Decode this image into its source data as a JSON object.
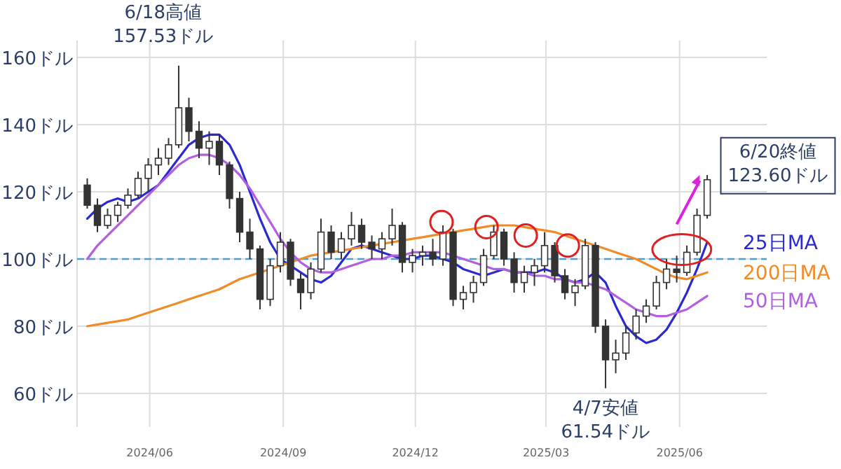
{
  "chart_data": {
    "type": "candlestick",
    "color": "#333333",
    "x": [
      "2024-04-19",
      "2024-04-26",
      "2024-05-03",
      "2024-05-10",
      "2024-05-17",
      "2024-05-24",
      "2024-05-31",
      "2024-06-07",
      "2024-06-14",
      "2024-06-21",
      "2024-06-28",
      "2024-07-05",
      "2024-07-12",
      "2024-07-19",
      "2024-07-26",
      "2024-08-02",
      "2024-08-09",
      "2024-08-16",
      "2024-08-23",
      "2024-08-30",
      "2024-09-06",
      "2024-09-13",
      "2024-09-20",
      "2024-09-27",
      "2024-10-04",
      "2024-10-11",
      "2024-10-18",
      "2024-10-25",
      "2024-11-01",
      "2024-11-08",
      "2024-11-15",
      "2024-11-22",
      "2024-11-29",
      "2024-12-06",
      "2024-12-13",
      "2024-12-20",
      "2024-12-27",
      "2025-01-03",
      "2025-01-10",
      "2025-01-17",
      "2025-01-24",
      "2025-01-31",
      "2025-02-07",
      "2025-02-14",
      "2025-02-21",
      "2025-02-28",
      "2025-03-07",
      "2025-03-14",
      "2025-03-21",
      "2025-03-28",
      "2025-04-04",
      "2025-04-11",
      "2025-04-18",
      "2025-04-25",
      "2025-05-02",
      "2025-05-09",
      "2025-05-16",
      "2025-05-23",
      "2025-05-30",
      "2025-06-06",
      "2025-06-13",
      "2025-06-20"
    ],
    "ohlc": [
      [
        122,
        124,
        115,
        116
      ],
      [
        116,
        118,
        108,
        110
      ],
      [
        110,
        115,
        109,
        113
      ],
      [
        113,
        117,
        111,
        116
      ],
      [
        116,
        121,
        115,
        119
      ],
      [
        119,
        126,
        118,
        124
      ],
      [
        124,
        130,
        120,
        128
      ],
      [
        128,
        133,
        125,
        130
      ],
      [
        130,
        136,
        128,
        134
      ],
      [
        134,
        157.53,
        133,
        145
      ],
      [
        145,
        148,
        135,
        138
      ],
      [
        138,
        141,
        130,
        133
      ],
      [
        133,
        138,
        128,
        135
      ],
      [
        135,
        137,
        125,
        128
      ],
      [
        128,
        129,
        115,
        118
      ],
      [
        118,
        120,
        105,
        108
      ],
      [
        108,
        112,
        100,
        103
      ],
      [
        103,
        104,
        85,
        88
      ],
      [
        88,
        100,
        86,
        98
      ],
      [
        98,
        108,
        96,
        105
      ],
      [
        105,
        106,
        92,
        94
      ],
      [
        94,
        96,
        85,
        90
      ],
      [
        90,
        99,
        88,
        97
      ],
      [
        97,
        112,
        96,
        108
      ],
      [
        108,
        110,
        100,
        102
      ],
      [
        102,
        108,
        100,
        106
      ],
      [
        106,
        114,
        104,
        110
      ],
      [
        110,
        112,
        103,
        105
      ],
      [
        105,
        107,
        100,
        103
      ],
      [
        103,
        108,
        100,
        106
      ],
      [
        106,
        115,
        104,
        110
      ],
      [
        110,
        111,
        96,
        99
      ],
      [
        99,
        103,
        96,
        101
      ],
      [
        101,
        104,
        98,
        102
      ],
      [
        102,
        106,
        98,
        100
      ],
      [
        100,
        110,
        98,
        108
      ],
      [
        108,
        109,
        86,
        88
      ],
      [
        88,
        92,
        85,
        90
      ],
      [
        90,
        95,
        87,
        93
      ],
      [
        93,
        103,
        92,
        101
      ],
      [
        101,
        110,
        100,
        108
      ],
      [
        108,
        109,
        98,
        100
      ],
      [
        100,
        102,
        90,
        93
      ],
      [
        93,
        98,
        90,
        96
      ],
      [
        96,
        100,
        92,
        98
      ],
      [
        98,
        108,
        96,
        104
      ],
      [
        104,
        105,
        93,
        95
      ],
      [
        95,
        97,
        88,
        90
      ],
      [
        90,
        94,
        86,
        92
      ],
      [
        92,
        106,
        91,
        104
      ],
      [
        104,
        105,
        78,
        80
      ],
      [
        80,
        82,
        61.54,
        70
      ],
      [
        70,
        76,
        66,
        72
      ],
      [
        72,
        80,
        70,
        78
      ],
      [
        78,
        85,
        76,
        83
      ],
      [
        83,
        88,
        81,
        86
      ],
      [
        86,
        95,
        85,
        93
      ],
      [
        93,
        100,
        91,
        97
      ],
      [
        97,
        101,
        93,
        96
      ],
      [
        96,
        104,
        95,
        102
      ],
      [
        102,
        115,
        101,
        113
      ],
      [
        113,
        125,
        112,
        123.6
      ]
    ],
    "series": [
      {
        "name": "25日MA",
        "type": "line",
        "color": "#2a2ad0",
        "values": [
          112,
          115,
          117,
          118,
          117,
          118,
          120,
          122,
          126,
          130,
          134,
          136,
          137,
          137,
          134,
          128,
          120,
          112,
          105,
          100,
          98,
          96,
          94,
          93,
          95,
          99,
          103,
          104,
          103,
          102,
          101,
          100,
          100,
          101,
          101,
          100,
          99,
          97,
          96,
          95,
          96,
          97,
          96,
          96,
          96,
          97,
          96,
          94,
          93,
          94,
          96,
          93,
          86,
          80,
          77,
          75,
          76,
          79,
          84,
          90,
          97,
          105
        ]
      },
      {
        "name": "200日MA",
        "type": "line",
        "color": "#f08c28",
        "values": [
          80,
          80.5,
          81,
          81.5,
          82,
          83,
          84,
          85,
          86,
          87,
          88,
          89,
          90,
          91,
          92.5,
          94,
          95,
          96,
          97,
          98,
          99,
          100,
          101,
          101.5,
          102,
          102.5,
          103,
          103.5,
          104,
          104.5,
          105,
          105.5,
          106,
          106.5,
          107,
          107.5,
          108,
          108.5,
          109,
          109.5,
          110,
          110,
          110,
          109.5,
          109,
          108.5,
          108,
          107,
          106,
          105,
          104,
          103,
          102,
          101,
          100,
          98.5,
          97,
          95.5,
          94.5,
          94,
          95,
          96
        ]
      },
      {
        "type": "scatter",
        "marker": "circle",
        "color": "#e02020",
        "x": [
          "2024-12-19",
          "2025-01-19",
          "2025-02-15",
          "2025-03-16"
        ],
        "values": [
          111,
          109.5,
          107,
          104
        ]
      },
      {
        "name": "50日MA",
        "type": "line",
        "color": "#b060e0",
        "values": [
          100,
          104,
          107,
          110,
          113,
          116,
          119,
          122,
          125,
          128,
          130,
          131,
          131,
          130,
          128,
          125,
          121,
          116,
          111,
          106,
          102,
          99,
          97,
          96,
          96,
          97,
          98,
          99,
          100,
          100,
          101,
          101,
          102,
          102,
          102,
          102,
          101,
          100,
          99,
          98,
          97,
          97,
          96,
          96,
          95,
          95,
          94,
          94,
          93,
          93,
          92,
          91,
          89,
          87,
          85,
          84,
          83,
          83,
          84,
          85,
          87,
          89
        ]
      }
    ],
    "xlim": [
      "2024-04-12",
      "2025-07-31"
    ],
    "xticks": [
      {
        "value": "2024-06-01",
        "label": "2024/06"
      },
      {
        "value": "2024-09-01",
        "label": "2024/09"
      },
      {
        "value": "2024-12-01",
        "label": "2024/12"
      },
      {
        "value": "2025-03-01",
        "label": "2025/03"
      },
      {
        "value": "2025-06-01",
        "label": "2025/06"
      }
    ],
    "ylim": [
      50,
      165
    ],
    "yticks": [
      {
        "value": 60,
        "label": "60ドル"
      },
      {
        "value": 80,
        "label": "80ドル"
      },
      {
        "value": 100,
        "label": "100ドル"
      },
      {
        "value": 120,
        "label": "120ドル"
      },
      {
        "value": 140,
        "label": "140ドル"
      },
      {
        "value": 160,
        "label": "160ドル"
      }
    ],
    "grid": true,
    "legend": false,
    "marker": "none",
    "line_style": "solid",
    "ref_lines": [
      {
        "axis": "y",
        "value": 100,
        "color": "#4a9fd8",
        "line_style": "dashed"
      }
    ],
    "annotations": [
      {
        "text": "6/18高値\n157.53ドル",
        "x": "2024-06-18",
        "y": 157.53
      },
      {
        "text": "4/7安値\n61.54ドル",
        "x": "2025-04-07",
        "y": 61.54
      },
      {
        "text": "6/20終値\n123.60ドル",
        "x": "2025-06-20",
        "y": 123.6
      }
    ]
  }
}
